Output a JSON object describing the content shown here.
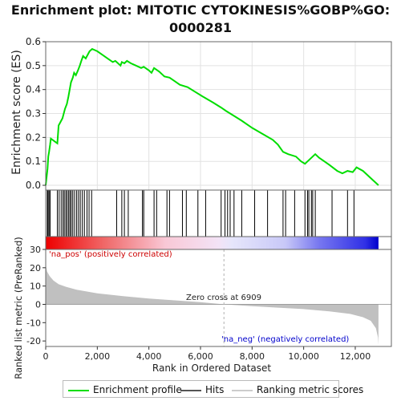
{
  "title": "Enrichment plot: MITOTIC CYTOKINESIS%GOBP%GO:\n0000281",
  "colors": {
    "es_line": "#00dd00",
    "hits": "#000000",
    "metric_fill": "#c0c0c0",
    "zero_cross_line": "#b0b0b0",
    "pos_label": "#cc0000",
    "neg_label": "#0000cc"
  },
  "legend": {
    "enrichment_profile": "Enrichment profile",
    "hits": "Hits",
    "ranking_metric_scores": "Ranking metric scores"
  },
  "chart_data": [
    {
      "type": "line",
      "ylabel": "Enrichment score (ES)",
      "ylim": [
        -0.02,
        0.6
      ],
      "yticks": [
        0.0,
        0.1,
        0.2,
        0.3,
        0.4,
        0.5,
        0.6
      ],
      "ytick_labels": [
        "0.0",
        "0.1",
        "0.2",
        "0.3",
        "0.4",
        "0.5",
        "0.6"
      ],
      "xlim": [
        0,
        13400
      ],
      "grid": true,
      "series": [
        {
          "points": [
            [
              0,
              0
            ],
            [
              40,
              0.04
            ],
            [
              70,
              0.07
            ],
            [
              100,
              0.12
            ],
            [
              130,
              0.14
            ],
            [
              170,
              0.17
            ],
            [
              200,
              0.195
            ],
            [
              450,
              0.175
            ],
            [
              500,
              0.25
            ],
            [
              550,
              0.26
            ],
            [
              650,
              0.28
            ],
            [
              700,
              0.3
            ],
            [
              750,
              0.32
            ],
            [
              820,
              0.34
            ],
            [
              880,
              0.37
            ],
            [
              930,
              0.4
            ],
            [
              980,
              0.43
            ],
            [
              1050,
              0.45
            ],
            [
              1100,
              0.47
            ],
            [
              1170,
              0.46
            ],
            [
              1250,
              0.48
            ],
            [
              1320,
              0.5
            ],
            [
              1380,
              0.52
            ],
            [
              1450,
              0.54
            ],
            [
              1550,
              0.53
            ],
            [
              1650,
              0.55
            ],
            [
              1700,
              0.56
            ],
            [
              1800,
              0.57
            ],
            [
              2000,
              0.56
            ],
            [
              2200,
              0.545
            ],
            [
              2400,
              0.53
            ],
            [
              2600,
              0.515
            ],
            [
              2700,
              0.52
            ],
            [
              2800,
              0.51
            ],
            [
              2900,
              0.5
            ],
            [
              2950,
              0.515
            ],
            [
              3050,
              0.51
            ],
            [
              3150,
              0.52
            ],
            [
              3300,
              0.51
            ],
            [
              3500,
              0.5
            ],
            [
              3700,
              0.49
            ],
            [
              3800,
              0.495
            ],
            [
              4000,
              0.48
            ],
            [
              4100,
              0.47
            ],
            [
              4200,
              0.49
            ],
            [
              4400,
              0.475
            ],
            [
              4600,
              0.455
            ],
            [
              4800,
              0.45
            ],
            [
              5000,
              0.435
            ],
            [
              5200,
              0.42
            ],
            [
              5500,
              0.41
            ],
            [
              5800,
              0.39
            ],
            [
              6100,
              0.37
            ],
            [
              6500,
              0.345
            ],
            [
              6800,
              0.325
            ],
            [
              7000,
              0.31
            ],
            [
              7300,
              0.29
            ],
            [
              7600,
              0.27
            ],
            [
              8000,
              0.24
            ],
            [
              8400,
              0.215
            ],
            [
              8800,
              0.19
            ],
            [
              9000,
              0.17
            ],
            [
              9200,
              0.14
            ],
            [
              9400,
              0.13
            ],
            [
              9700,
              0.12
            ],
            [
              9900,
              0.1
            ],
            [
              10050,
              0.09
            ],
            [
              10150,
              0.1
            ],
            [
              10250,
              0.11
            ],
            [
              10350,
              0.12
            ],
            [
              10450,
              0.13
            ],
            [
              10600,
              0.115
            ],
            [
              10800,
              0.1
            ],
            [
              11000,
              0.085
            ],
            [
              11300,
              0.06
            ],
            [
              11500,
              0.05
            ],
            [
              11700,
              0.06
            ],
            [
              11900,
              0.055
            ],
            [
              12050,
              0.075
            ],
            [
              12300,
              0.06
            ],
            [
              12600,
              0.03
            ],
            [
              12900,
              0.0
            ]
          ]
        }
      ]
    },
    {
      "type": "scatter",
      "name": "hits",
      "x": [
        60,
        90,
        130,
        170,
        450,
        520,
        600,
        670,
        720,
        780,
        830,
        890,
        940,
        990,
        1050,
        1120,
        1200,
        1270,
        1340,
        1420,
        1500,
        1600,
        1680,
        1780,
        2750,
        2950,
        3050,
        3200,
        3750,
        3800,
        4200,
        4300,
        4700,
        4800,
        5300,
        5450,
        5900,
        6200,
        6800,
        6950,
        7050,
        7150,
        7300,
        7600,
        8100,
        8600,
        9200,
        9300,
        9650,
        10050,
        10150,
        10200,
        10300,
        10350,
        10450,
        11100,
        11700,
        11950
      ]
    },
    {
      "type": "area",
      "ylabel": "Ranked list metric (PreRanked)",
      "xlabel": "Rank in Ordered Dataset",
      "ylim": [
        -23,
        30
      ],
      "yticks": [
        30,
        20,
        10,
        0,
        -10,
        -20
      ],
      "ytick_labels": [
        "30",
        "20",
        "10",
        "0",
        "-10",
        "-20"
      ],
      "xticks": [
        0,
        2000,
        4000,
        6000,
        8000,
        10000,
        12000
      ],
      "xtick_labels": [
        "0",
        "2,000",
        "4,000",
        "6,000",
        "8,000",
        "10,000",
        "12,000"
      ],
      "xlim": [
        0,
        13400
      ],
      "zero_cross_label": "Zero cross at 6909",
      "zero_cross": 6909,
      "pos_label": "'na_pos' (positively correlated)",
      "neg_label": "'na_neg' (negatively correlated)",
      "series": [
        {
          "points": [
            [
              0,
              22
            ],
            [
              50,
              18
            ],
            [
              150,
              15.5
            ],
            [
              300,
              13
            ],
            [
              500,
              11
            ],
            [
              800,
              9.5
            ],
            [
              1200,
              8
            ],
            [
              2000,
              6
            ],
            [
              3000,
              4.5
            ],
            [
              4000,
              3.2
            ],
            [
              5000,
              2.2
            ],
            [
              6000,
              1.2
            ],
            [
              6909,
              0
            ],
            [
              8000,
              -1
            ],
            [
              9000,
              -1.8
            ],
            [
              10000,
              -2.6
            ],
            [
              11000,
              -3.8
            ],
            [
              11800,
              -5.2
            ],
            [
              12300,
              -7
            ],
            [
              12600,
              -9
            ],
            [
              12800,
              -13
            ],
            [
              12880,
              -18
            ],
            [
              12900,
              -22
            ]
          ]
        }
      ]
    }
  ]
}
